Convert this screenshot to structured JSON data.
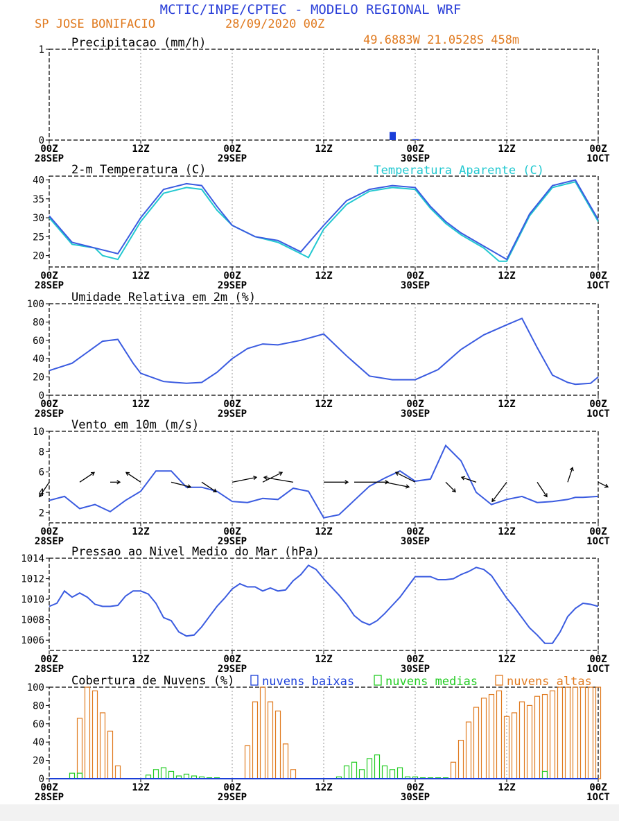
{
  "header": {
    "title": "MCTIC/INPE/CPTEC - MODELO REGIONAL WRF",
    "station": "SP JOSE BONIFACIO",
    "run": "28/09/2020 00Z",
    "location": "49.6883W 21.0528S 458m"
  },
  "time_axis": {
    "ticks": [
      "00Z",
      "12Z",
      "00Z",
      "12Z",
      "00Z",
      "12Z",
      "00Z"
    ],
    "dates": [
      "28SEP",
      "",
      "29SEP",
      "",
      "30SEP",
      "",
      "1OCT"
    ]
  },
  "colors": {
    "title": "#2a3fd8",
    "orange": "#e07a1f",
    "main": "#3a5be0",
    "cyan": "#22c8d0",
    "green": "#22cc22",
    "wind": "#000000",
    "bar_blue": "#1a3ed8",
    "grid": "#999999"
  },
  "chart_data": [
    {
      "id": "precip",
      "type": "bar",
      "title": "Precipitacao (mm/h)",
      "ylim": [
        0,
        1
      ],
      "yticks": [
        0,
        1
      ],
      "x_hours": [
        45,
        48
      ],
      "values": [
        0.09,
        0.01
      ],
      "grid": true
    },
    {
      "id": "temp",
      "type": "line",
      "title": "2-m Temperatura (C)",
      "legend": "Temperatura Aparente (C)",
      "ylim": [
        17,
        41
      ],
      "yticks": [
        20,
        25,
        30,
        35,
        40
      ],
      "series": [
        {
          "x": [
            0,
            3,
            6,
            9,
            12,
            15,
            18,
            20,
            22,
            24,
            27,
            30,
            33,
            36,
            39,
            42,
            45,
            48,
            50,
            52,
            54,
            57,
            60,
            63,
            66,
            69,
            72
          ],
          "y": [
            30.5,
            23.5,
            22,
            20.5,
            30,
            37.5,
            39,
            38.5,
            33,
            28,
            25,
            24,
            21,
            28,
            34.5,
            37.5,
            38.5,
            38,
            33,
            29,
            26,
            22.5,
            19,
            31,
            38.5,
            40,
            29.5
          ]
        },
        {
          "legend_series": true,
          "x": [
            0,
            3,
            6,
            7,
            9,
            12,
            15,
            18,
            20,
            22,
            24,
            27,
            30,
            33,
            34,
            36,
            39,
            42,
            45,
            48,
            50,
            52,
            54,
            57,
            59,
            60,
            63,
            66,
            69,
            72
          ],
          "y": [
            30,
            23,
            22,
            20,
            19,
            29,
            36.5,
            38,
            37.5,
            32,
            28,
            25,
            23.5,
            20.5,
            19.5,
            27,
            33.5,
            37,
            38,
            37.5,
            32.5,
            28.5,
            25.5,
            22,
            18.5,
            18.5,
            30.5,
            38,
            39.5,
            29
          ]
        }
      ]
    },
    {
      "id": "rh",
      "type": "line",
      "title": "Umidade Relativa em 2m (%)",
      "ylim": [
        0,
        100
      ],
      "yticks": [
        0,
        20,
        40,
        60,
        80,
        100
      ],
      "series": [
        {
          "x": [
            0,
            3,
            5,
            7,
            9,
            11,
            12,
            13,
            15,
            18,
            20,
            22,
            24,
            26,
            28,
            30,
            33,
            36,
            39,
            42,
            45,
            48,
            51,
            54,
            57,
            60,
            62,
            64,
            66,
            68,
            69,
            71,
            72
          ],
          "y": [
            27,
            35,
            47,
            59,
            61,
            35,
            24,
            21,
            15,
            13,
            14,
            25,
            40,
            51,
            56,
            55,
            60,
            67,
            43,
            21,
            17,
            17,
            28,
            50,
            66,
            77,
            84,
            52,
            22,
            14,
            12,
            13,
            20
          ]
        }
      ]
    },
    {
      "id": "wind",
      "type": "line",
      "title": "Vento em 10m (m/s)",
      "ylim": [
        1,
        10
      ],
      "yticks": [
        2,
        4,
        6,
        8,
        10
      ],
      "series": [
        {
          "x": [
            0,
            2,
            4,
            6,
            8,
            10,
            12,
            14,
            16,
            18,
            20,
            22,
            24,
            26,
            28,
            30,
            32,
            34,
            36,
            38,
            40,
            42,
            44,
            46,
            48,
            50,
            52,
            54,
            56,
            58,
            60,
            62,
            64,
            66,
            68,
            69,
            70,
            72
          ],
          "y": [
            3.2,
            3.6,
            2.4,
            2.8,
            2.1,
            3.2,
            4.1,
            6.1,
            6.1,
            4.5,
            4.5,
            4.1,
            3.1,
            3.0,
            3.4,
            3.3,
            4.4,
            4.1,
            1.5,
            1.8,
            3.2,
            4.6,
            5.4,
            6.1,
            5.1,
            5.3,
            8.6,
            7.1,
            4.0,
            2.8,
            3.3,
            3.6,
            3.0,
            3.1,
            3.3,
            3.5,
            3.5,
            3.6
          ]
        }
      ],
      "barbs": {
        "x": [
          0,
          4,
          8,
          12,
          16,
          20,
          24,
          28,
          32,
          36,
          40,
          44,
          48,
          52,
          56,
          60,
          64,
          68,
          72
        ],
        "u": [
          -2,
          3,
          2,
          -3,
          4,
          3,
          5,
          4,
          -6,
          5,
          7,
          5,
          -4,
          2,
          -3,
          -3,
          2,
          1,
          2
        ],
        "v": [
          -3,
          2,
          0,
          2,
          -1,
          -2,
          1,
          2,
          1,
          0,
          0,
          -1,
          2,
          -2,
          1,
          -4,
          -3,
          3,
          -1
        ]
      }
    },
    {
      "id": "mslp",
      "type": "line",
      "title": "Pressao ao Nivel Medio do Mar (hPa)",
      "ylim": [
        1005,
        1014
      ],
      "yticks": [
        1006,
        1008,
        1010,
        1012,
        1014
      ],
      "series": [
        {
          "x": [
            0,
            1,
            2,
            3,
            4,
            5,
            6,
            7,
            8,
            9,
            10,
            11,
            12,
            13,
            14,
            15,
            16,
            17,
            18,
            19,
            20,
            21,
            22,
            23,
            24,
            25,
            26,
            27,
            28,
            29,
            30,
            31,
            32,
            33,
            34,
            35,
            36,
            37,
            38,
            39,
            40,
            41,
            42,
            43,
            44,
            45,
            46,
            47,
            48,
            49,
            50,
            51,
            52,
            53,
            54,
            55,
            56,
            57,
            58,
            59,
            60,
            61,
            62,
            63,
            64,
            65,
            66,
            67,
            68,
            69,
            70,
            71,
            72
          ],
          "y": [
            1009.3,
            1009.6,
            1010.8,
            1010.2,
            1010.6,
            1010.2,
            1009.5,
            1009.3,
            1009.3,
            1009.4,
            1010.3,
            1010.8,
            1010.8,
            1010.5,
            1009.6,
            1008.2,
            1007.9,
            1006.8,
            1006.4,
            1006.5,
            1007.3,
            1008.3,
            1009.3,
            1010.1,
            1011.0,
            1011.5,
            1011.2,
            1011.2,
            1010.8,
            1011.1,
            1010.8,
            1010.9,
            1011.8,
            1012.4,
            1013.3,
            1012.9,
            1012.0,
            1011.2,
            1010.4,
            1009.5,
            1008.4,
            1007.8,
            1007.5,
            1007.9,
            1008.6,
            1009.4,
            1010.2,
            1011.2,
            1012.2,
            1012.2,
            1012.2,
            1011.9,
            1011.9,
            1012.0,
            1012.4,
            1012.7,
            1013.1,
            1012.9,
            1012.3,
            1011.2,
            1010.1,
            1009.2,
            1008.2,
            1007.2,
            1006.5,
            1005.7,
            1005.7,
            1006.8,
            1008.3,
            1009.1,
            1009.6,
            1009.5,
            1009.3
          ]
        }
      ]
    },
    {
      "id": "clouds",
      "type": "bar",
      "title": "Cobertura de Nuvens (%)",
      "legend": [
        "nuvens baixas",
        "nuvens medias",
        "nuvens altas"
      ],
      "ylim": [
        0,
        100
      ],
      "yticks": [
        0,
        20,
        40,
        60,
        80,
        100
      ],
      "series": [
        {
          "name": "nuvens altas",
          "x": [
            4,
            5,
            6,
            7,
            8,
            9,
            26,
            27,
            28,
            29,
            30,
            31,
            32,
            53,
            54,
            55,
            56,
            57,
            58,
            59,
            60,
            61,
            62,
            63,
            64,
            65,
            66,
            67,
            68,
            69,
            70,
            71,
            72
          ],
          "values": [
            66,
            100,
            96,
            72,
            52,
            14,
            36,
            84,
            100,
            84,
            74,
            38,
            10,
            18,
            42,
            62,
            78,
            88,
            92,
            96,
            68,
            72,
            84,
            80,
            90,
            92,
            96,
            100,
            100,
            100,
            100,
            100,
            100
          ]
        },
        {
          "name": "nuvens medias",
          "x": [
            3,
            4,
            13,
            14,
            15,
            16,
            17,
            18,
            19,
            20,
            21,
            22,
            38,
            39,
            40,
            41,
            42,
            43,
            44,
            45,
            46,
            47,
            48,
            49,
            50,
            51,
            52,
            65
          ],
          "values": [
            6,
            6,
            4,
            10,
            12,
            8,
            3,
            5,
            3,
            2,
            1,
            1,
            2,
            14,
            18,
            10,
            22,
            26,
            14,
            10,
            12,
            2,
            2,
            1,
            1,
            1,
            1,
            8
          ]
        },
        {
          "name": "nuvens baixas",
          "x": [],
          "values": []
        }
      ]
    }
  ]
}
